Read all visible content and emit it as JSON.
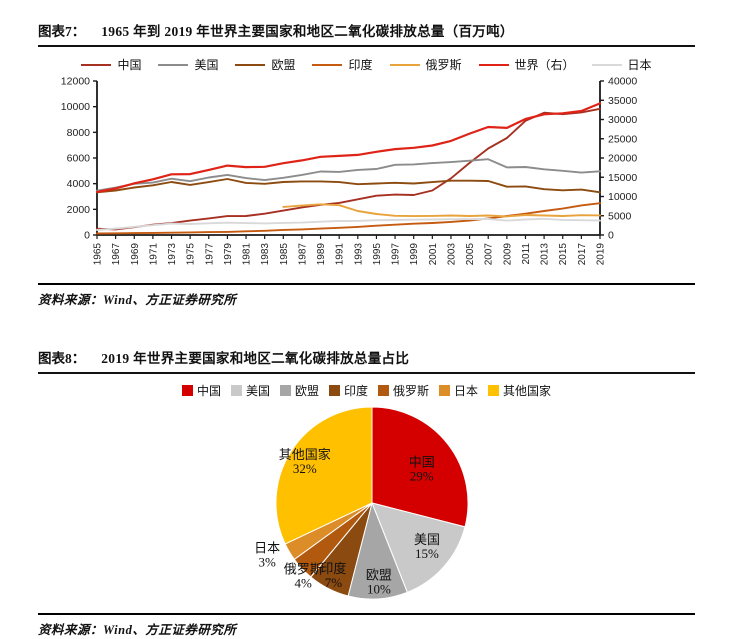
{
  "figure7": {
    "label": "图表7：",
    "title": "1965 年到 2019 年世界主要国家和地区二氧化碳排放总量（百万吨）",
    "source": "资料来源：Wind、方正证券研究所"
  },
  "figure8": {
    "label": "图表8：",
    "title": "2019 年世界主要国家和地区二氧化碳排放总量占比",
    "source": "资料来源：Wind、方正证券研究所"
  },
  "chart_data": [
    {
      "type": "line",
      "title": "1965 年到 2019 年世界主要国家和地区二氧化碳排放总量（百万吨）",
      "x_tick_labels": [
        "1965",
        "1967",
        "1969",
        "1971",
        "1973",
        "1975",
        "1977",
        "1979",
        "1981",
        "1983",
        "1985",
        "1987",
        "1989",
        "1991",
        "1993",
        "1995",
        "1997",
        "1999",
        "2001",
        "2003",
        "2005",
        "2007",
        "2009",
        "2011",
        "2013",
        "2015",
        "2017",
        "2019"
      ],
      "left_axis": {
        "min": 0,
        "max": 12000,
        "step": 2000
      },
      "right_axis": {
        "min": 0,
        "max": 40000,
        "step": 5000
      },
      "grid": false,
      "legend_position": "top",
      "series": [
        {
          "name": "中国",
          "axis": "left",
          "color": "#A63022",
          "values": [
            490,
            440,
            610,
            800,
            930,
            1120,
            1290,
            1470,
            1480,
            1660,
            1900,
            2150,
            2350,
            2500,
            2780,
            3060,
            3150,
            3120,
            3470,
            4420,
            5620,
            6740,
            7560,
            8900,
            9530,
            9410,
            9550,
            9830
          ]
        },
        {
          "name": "美国",
          "axis": "left",
          "color": "#8C8C8C",
          "values": [
            3455,
            3700,
            3990,
            4080,
            4390,
            4190,
            4480,
            4680,
            4430,
            4280,
            4460,
            4680,
            4950,
            4920,
            5070,
            5140,
            5470,
            5500,
            5600,
            5680,
            5790,
            5910,
            5270,
            5300,
            5120,
            5000,
            4860,
            4965
          ]
        },
        {
          "name": "欧盟",
          "axis": "left",
          "color": "#8C4B10",
          "values": [
            3330,
            3470,
            3700,
            3870,
            4130,
            3900,
            4120,
            4360,
            4060,
            3990,
            4130,
            4180,
            4180,
            4120,
            3960,
            4010,
            4070,
            4010,
            4120,
            4230,
            4230,
            4210,
            3760,
            3790,
            3570,
            3480,
            3540,
            3330
          ]
        },
        {
          "name": "印度",
          "axis": "left",
          "color": "#C55A11",
          "values": [
            120,
            135,
            150,
            165,
            180,
            205,
            225,
            245,
            285,
            330,
            395,
            440,
            500,
            560,
            630,
            725,
            800,
            880,
            935,
            1020,
            1130,
            1290,
            1480,
            1660,
            1870,
            2060,
            2310,
            2480
          ]
        },
        {
          "name": "俄罗斯",
          "axis": "left",
          "color": "#E8A33D",
          "values": [
            null,
            null,
            null,
            null,
            null,
            null,
            null,
            null,
            null,
            null,
            2190,
            2290,
            2390,
            2320,
            1870,
            1640,
            1500,
            1470,
            1490,
            1520,
            1480,
            1520,
            1450,
            1560,
            1520,
            1480,
            1540,
            1530
          ]
        },
        {
          "name": "世界（右）",
          "axis": "right",
          "color": "#DF2317",
          "values": [
            11190,
            12070,
            13420,
            14480,
            15770,
            15830,
            16900,
            18030,
            17630,
            17720,
            18640,
            19370,
            20300,
            20550,
            20800,
            21620,
            22320,
            22640,
            23240,
            24430,
            26340,
            28050,
            27820,
            30120,
            31340,
            31600,
            32220,
            34170
          ]
        },
        {
          "name": "日本",
          "axis": "left",
          "color": "#D9D9D9",
          "values": [
            390,
            500,
            640,
            760,
            890,
            860,
            910,
            960,
            930,
            900,
            945,
            965,
            1040,
            1090,
            1095,
            1150,
            1170,
            1190,
            1205,
            1230,
            1240,
            1250,
            1120,
            1210,
            1260,
            1180,
            1150,
            1120
          ]
        }
      ]
    },
    {
      "type": "pie",
      "title": "2019 年世界主要国家和地区二氧化碳排放总量占比",
      "legend_position": "top",
      "direction": "clockwise",
      "start_angle_deg": 0,
      "slices": [
        {
          "name": "中国",
          "pct": 29,
          "color": "#D40000"
        },
        {
          "name": "美国",
          "pct": 15,
          "color": "#C9C9C9"
        },
        {
          "name": "欧盟",
          "pct": 10,
          "color": "#A6A6A6"
        },
        {
          "name": "印度",
          "pct": 7,
          "color": "#8A4A10"
        },
        {
          "name": "俄罗斯",
          "pct": 4,
          "color": "#B15A0F"
        },
        {
          "name": "日本",
          "pct": 3,
          "color": "#DD8D27"
        },
        {
          "name": "其他国家",
          "pct": 32,
          "color": "#FFC000"
        }
      ]
    }
  ]
}
